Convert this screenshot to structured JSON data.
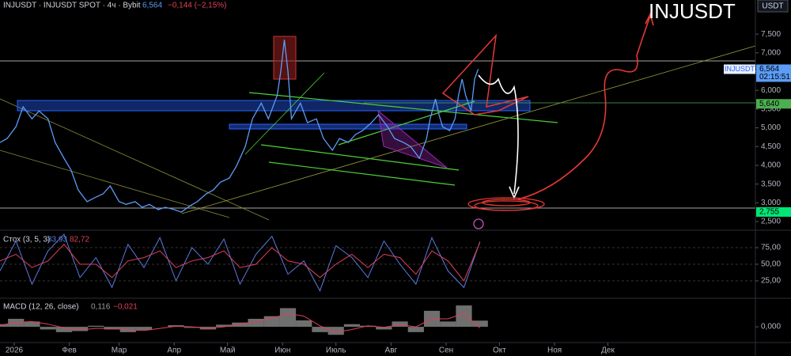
{
  "chart_data": [
    {
      "type": "line",
      "title": "INJUSDT · INJUSDT SPOT · 4ч · Bybit",
      "header_values": [
        "6,564",
        "−0,144 (−2,15%)"
      ],
      "currency": "USDT",
      "annotation": "INJUSDT",
      "color": "#5b9cf6",
      "x": [
        -8,
        -4,
        1,
        5,
        10,
        14,
        19,
        23,
        28,
        32,
        36,
        41,
        45,
        50,
        54,
        59,
        63,
        68,
        72,
        76,
        81,
        85,
        90,
        94,
        99,
        103,
        108,
        112,
        116,
        121,
        125,
        130,
        134,
        139,
        143,
        148,
        150,
        152,
        154,
        156,
        161,
        165,
        170,
        174,
        179,
        183,
        188,
        192,
        196,
        201,
        205,
        210,
        214,
        219,
        223,
        228,
        232,
        234,
        237,
        239,
        241,
        245,
        248,
        250,
        252,
        254,
        257,
        259,
        261
      ],
      "values": [
        4.61,
        4.715,
        5.03,
        5.56,
        5.24,
        5.45,
        5.24,
        4.61,
        4.19,
        3.87,
        3.34,
        3.03,
        3.13,
        3.24,
        3.45,
        3.03,
        2.96,
        3.03,
        2.88,
        2.96,
        2.82,
        2.88,
        2.82,
        2.75,
        2.92,
        3.03,
        3.24,
        3.34,
        3.55,
        3.66,
        3.98,
        4.5,
        5.24,
        5.66,
        5.24,
        5.87,
        6.51,
        7.35,
        6.51,
        5.24,
        5.66,
        5.14,
        5.24,
        4.715,
        4.4,
        4.715,
        4.61,
        4.82,
        4.925,
        5.14,
        5.35,
        5.03,
        4.715,
        4.61,
        4.5,
        4.19,
        4.715,
        5.24,
        5.77,
        5.35,
        5.03,
        4.925,
        5.24,
        5.87,
        6.3,
        5.87,
        5.45,
        6.3,
        6.564
      ],
      "xlim": [
        -8,
        417
      ],
      "xticks": [
        {
          "value": 0,
          "label": "2026"
        },
        {
          "value": 31,
          "label": "Фев"
        },
        {
          "value": 59,
          "label": "Мар"
        },
        {
          "value": 90,
          "label": "Апр"
        },
        {
          "value": 120,
          "label": "Май"
        },
        {
          "value": 151,
          "label": "Июн"
        },
        {
          "value": 181,
          "label": "Июль"
        },
        {
          "value": 212,
          "label": "Авг"
        },
        {
          "value": 243,
          "label": "Сен"
        },
        {
          "value": 273,
          "label": "Окт"
        },
        {
          "value": 304,
          "label": "Ноя"
        },
        {
          "value": 334,
          "label": "Дек"
        }
      ],
      "ylim": [
        2.29,
        8.41
      ],
      "yticks": [
        {
          "value": 7.5,
          "label": "7,500"
        },
        {
          "value": 7,
          "label": "7,000"
        },
        {
          "value": 6.5,
          "label": "6,500"
        },
        {
          "value": 6,
          "label": "6,000"
        },
        {
          "value": 5.5,
          "label": "5,500"
        },
        {
          "value": 5,
          "label": "5,000"
        },
        {
          "value": 4.5,
          "label": "4,500"
        },
        {
          "value": 4,
          "label": "4,000"
        },
        {
          "value": 3.5,
          "label": "3,500"
        },
        {
          "value": 3,
          "label": "3,000"
        },
        {
          "value": 2.5,
          "label": "2,500"
        }
      ],
      "price_lines": [
        {
          "value": 6.564,
          "label": "6,564",
          "name": "INJUSDT",
          "timer": "02:15:51",
          "color": "#5b9cf6"
        },
        {
          "value": 5.64,
          "label": "5,640",
          "color": "#4caf50"
        },
        {
          "value": 2.755,
          "label": "2,755",
          "color": "#00e676"
        }
      ]
    },
    {
      "type": "stoch",
      "title": "Стох (3, 5, 3)",
      "x": [
        -8,
        1,
        10,
        19,
        28,
        37,
        46,
        55,
        64,
        73,
        82,
        91,
        100,
        109,
        118,
        127,
        136,
        145,
        154,
        163,
        172,
        181,
        190,
        199,
        208,
        217,
        226,
        235,
        244,
        253,
        262
      ],
      "series": [
        {
          "color": "#5b7be0",
          "last_label": "83,93",
          "values": [
            40,
            85,
            20,
            70,
            95,
            30,
            60,
            15,
            80,
            45,
            90,
            25,
            75,
            50,
            88,
            20,
            65,
            92,
            35,
            55,
            10,
            78,
            60,
            30,
            85,
            50,
            20,
            90,
            40,
            15,
            83.93
          ]
        },
        {
          "color": "#e0405a",
          "last_label": "82,72",
          "values": [
            55,
            65,
            45,
            55,
            80,
            50,
            50,
            30,
            55,
            60,
            70,
            45,
            55,
            60,
            70,
            45,
            50,
            75,
            55,
            50,
            30,
            50,
            65,
            45,
            65,
            60,
            35,
            70,
            55,
            25,
            82.72
          ]
        }
      ],
      "ylim": [
        0,
        100
      ],
      "yticks": [
        {
          "value": 75,
          "label": "75,00"
        },
        {
          "value": 50,
          "label": "50,00"
        },
        {
          "value": 25,
          "label": "25,00"
        }
      ]
    },
    {
      "type": "macd",
      "title": "MACD (12, 26, close)",
      "x": [
        -8,
        1,
        10,
        19,
        28,
        37,
        46,
        55,
        64,
        73,
        82,
        91,
        100,
        109,
        118,
        127,
        136,
        145,
        154,
        163,
        172,
        181,
        190,
        199,
        208,
        217,
        226,
        235,
        244,
        253,
        262
      ],
      "series": [
        {
          "color": "#9e9e9e",
          "last_label": "0,116",
          "values": [
            0.05,
            0.15,
            0.1,
            -0.05,
            -0.1,
            -0.08,
            0.02,
            -0.05,
            -0.1,
            -0.06,
            0,
            0.03,
            -0.02,
            -0.05,
            0.04,
            0.08,
            0.15,
            0.2,
            0.35,
            0.12,
            -0.1,
            -0.15,
            0.05,
            0.02,
            -0.05,
            0.1,
            -0.1,
            0.3,
            0.1,
            0.4,
            0.116
          ]
        },
        {
          "color": "#e0405a",
          "last_label": "−0,021",
          "values": [
            0.03,
            0.08,
            0.1,
            0.05,
            -0.02,
            -0.06,
            -0.03,
            -0.03,
            -0.06,
            -0.07,
            -0.03,
            0.01,
            0,
            -0.03,
            0,
            0.05,
            0.1,
            0.16,
            0.25,
            0.2,
            0.02,
            -0.1,
            -0.05,
            0.02,
            -0.01,
            0.04,
            0,
            0.15,
            0.15,
            0.25,
            -0.021
          ]
        }
      ],
      "ylim": [
        -0.28,
        0.52
      ],
      "yticks": [
        {
          "value": 0,
          "label": "0,000"
        }
      ]
    }
  ]
}
